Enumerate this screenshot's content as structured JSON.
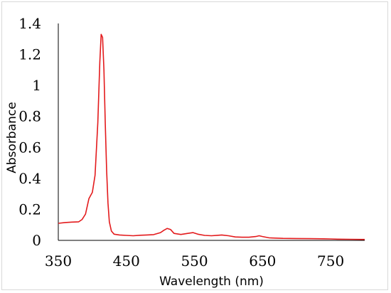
{
  "chart_data": {
    "type": "line",
    "title": "",
    "xlabel": "Wavelength (nm)",
    "ylabel": "Absorbance",
    "xlim": [
      350,
      800
    ],
    "ylim": [
      0,
      1.4
    ],
    "x_ticks": [
      350,
      450,
      550,
      650,
      750
    ],
    "y_ticks": [
      0,
      0.2,
      0.4,
      0.6,
      0.8,
      1,
      1.2,
      1.4
    ],
    "y_tick_labels": [
      "0",
      "0.2",
      "0.4",
      "0.6",
      "0.8",
      "1",
      "1.2",
      "1.4"
    ],
    "x_tick_labels": [
      "350",
      "450",
      "550",
      "650",
      "750"
    ],
    "grid": false,
    "legend": "none",
    "series": [
      {
        "color": "#e31a1c",
        "x": [
          350,
          360,
          370,
          380,
          385,
          390,
          395,
          400,
          404,
          408,
          411,
          413,
          415,
          417,
          419,
          421,
          423,
          425,
          428,
          432,
          440,
          450,
          460,
          470,
          480,
          490,
          500,
          505,
          510,
          515,
          520,
          530,
          540,
          548,
          555,
          565,
          575,
          585,
          590,
          600,
          610,
          620,
          630,
          640,
          645,
          650,
          660,
          680,
          700,
          720,
          740,
          750,
          760,
          780,
          800
        ],
        "y": [
          0.11,
          0.115,
          0.118,
          0.12,
          0.135,
          0.17,
          0.27,
          0.31,
          0.42,
          0.76,
          1.15,
          1.33,
          1.31,
          1.1,
          0.75,
          0.45,
          0.24,
          0.12,
          0.06,
          0.04,
          0.035,
          0.032,
          0.03,
          0.033,
          0.035,
          0.037,
          0.05,
          0.065,
          0.077,
          0.07,
          0.045,
          0.038,
          0.045,
          0.05,
          0.04,
          0.032,
          0.03,
          0.033,
          0.035,
          0.03,
          0.022,
          0.02,
          0.02,
          0.025,
          0.03,
          0.025,
          0.016,
          0.013,
          0.012,
          0.011,
          0.01,
          0.009,
          0.008,
          0.007,
          0.006
        ]
      }
    ]
  }
}
